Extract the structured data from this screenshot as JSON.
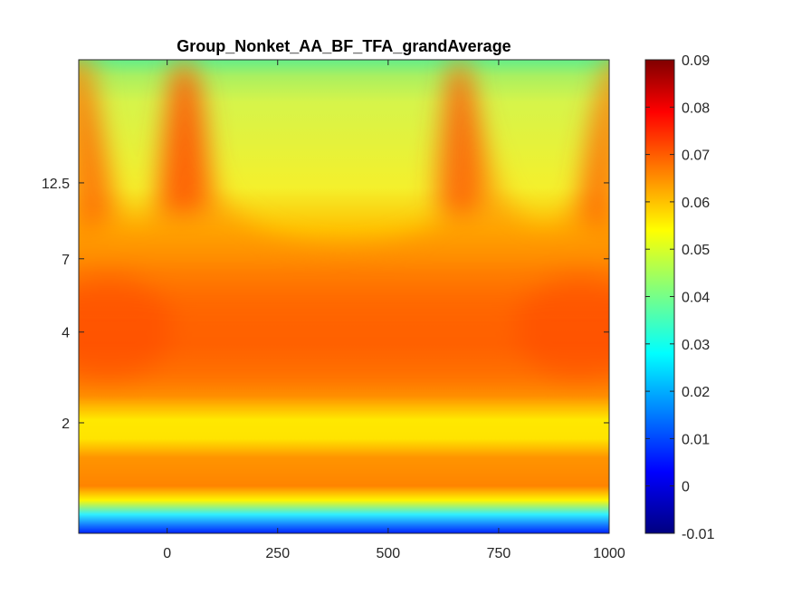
{
  "chart_data": {
    "type": "heatmap",
    "title": "Group_Nonket_AA_BF_TFA_grandAverage",
    "xlabel": "",
    "ylabel": "",
    "x_range": [
      -200,
      1000
    ],
    "x_ticks": [
      0,
      250,
      500,
      750,
      1000
    ],
    "x_tick_labels": [
      "0",
      "250",
      "500",
      "750",
      "1000"
    ],
    "y_scale": "log",
    "y_tick_labels": [
      "12.5",
      "7",
      "4",
      "2"
    ],
    "colormap": "jet",
    "color_range": [
      -0.01,
      0.09
    ],
    "colorbar_ticks": [
      0.09,
      0.08,
      0.07,
      0.06,
      0.05,
      0.04,
      0.03,
      0.02,
      0.01,
      0,
      -0.01
    ],
    "colorbar_tick_labels": [
      "0.09",
      "0.08",
      "0.07",
      "0.06",
      "0.05",
      "0.04",
      "0.03",
      "0.02",
      "0.01",
      "0",
      "-0.01"
    ],
    "legend": "colorbar-right",
    "grid": false,
    "features": [
      {
        "kind": "peak",
        "x": -190,
        "value": 0.07
      },
      {
        "kind": "peak",
        "x": 35,
        "value": 0.072
      },
      {
        "kind": "peak",
        "x": 660,
        "value": 0.072
      },
      {
        "kind": "peak",
        "x": 990,
        "value": 0.07
      },
      {
        "kind": "band",
        "y_label": "2",
        "value": 0.07
      },
      {
        "kind": "band",
        "y_label": "low-frequency",
        "value": 0.065
      },
      {
        "kind": "edge",
        "location": "bottom",
        "value": 0.02
      }
    ]
  }
}
